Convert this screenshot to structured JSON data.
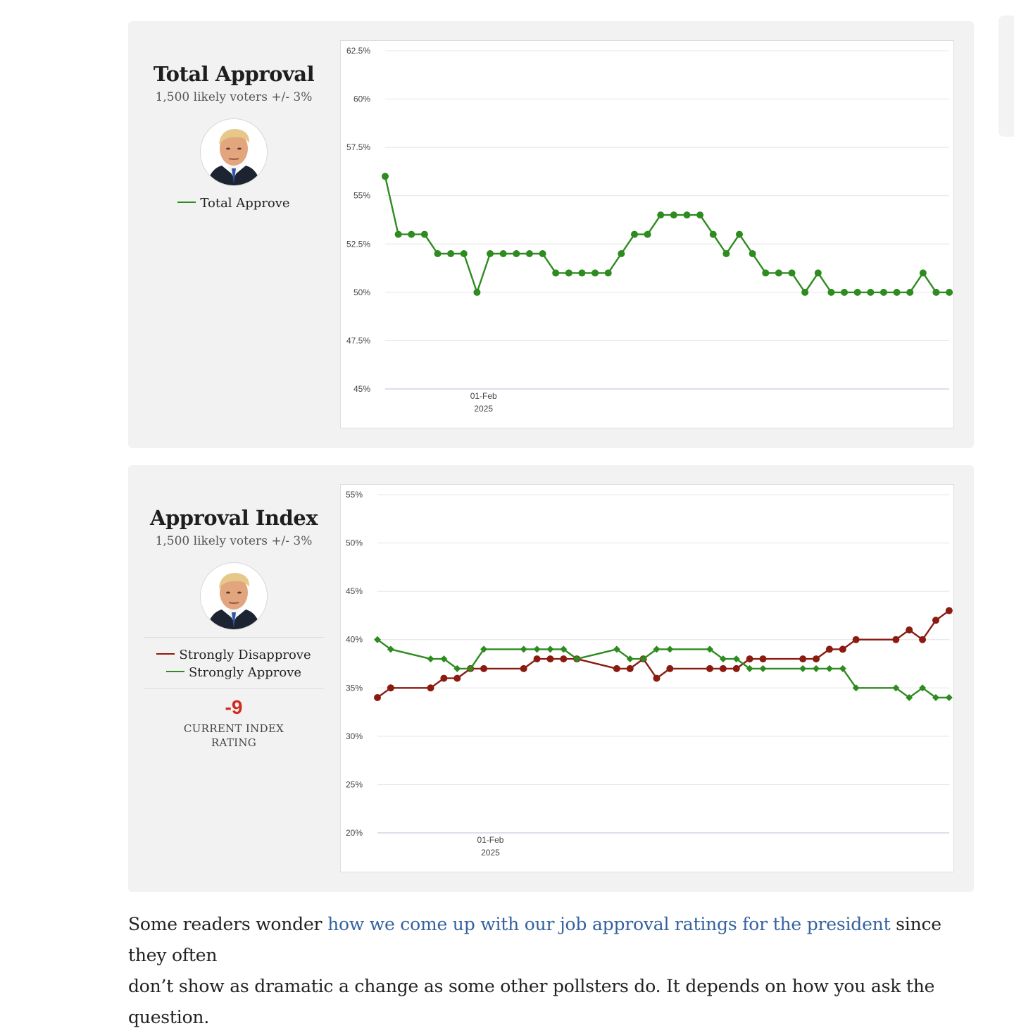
{
  "total_approval": {
    "title": "Total Approval",
    "subtitle": "1,500 likely voters +/- 3%",
    "legend": [
      {
        "label": "Total Approve",
        "color": "#2e8b1f"
      }
    ]
  },
  "approval_index": {
    "title": "Approval Index",
    "subtitle": "1,500 likely voters +/- 3%",
    "legend": [
      {
        "label": "Strongly Disapprove",
        "color": "#8b1a10"
      },
      {
        "label": "Strongly Approve",
        "color": "#2e8b1f"
      }
    ],
    "index_value": "-9",
    "index_label": "CURRENT INDEX RATING"
  },
  "article": {
    "text_before": "Some readers wonder ",
    "link": "how we come up with our job approval ratings for the president",
    "text_after": " since they often",
    "line2": "don’t show as dramatic a change as some other pollsters do. It depends on how you ask the question."
  },
  "colors": {
    "approve": "#2e8b1f",
    "disapprove": "#8b1a10",
    "link": "#35629e",
    "index": "#d2291f"
  },
  "chart_data": [
    {
      "type": "line",
      "title": "",
      "ylim": [
        45,
        62.5
      ],
      "yticks": [
        "62.5%",
        "60%",
        "57.5%",
        "55%",
        "52.5%",
        "50%",
        "47.5%",
        "45%"
      ],
      "xtick": {
        "label": "01-Feb",
        "sublabel": "2025",
        "index": 7.5
      },
      "series": [
        {
          "name": "Total Approve",
          "color": "#2e8b1f",
          "marker": "circle",
          "values": [
            56,
            53,
            53,
            53,
            52,
            52,
            52,
            50,
            52,
            52,
            52,
            52,
            52,
            51,
            51,
            51,
            51,
            51,
            52,
            53,
            53,
            54,
            54,
            54,
            54,
            53,
            52,
            53,
            52,
            51,
            51,
            51,
            50,
            51,
            50,
            50,
            50,
            50,
            50,
            50,
            50,
            51,
            50,
            50
          ]
        }
      ]
    },
    {
      "type": "line",
      "title": "",
      "ylim": [
        20,
        55
      ],
      "yticks": [
        "55%",
        "50%",
        "45%",
        "40%",
        "35%",
        "30%",
        "25%",
        "20%"
      ],
      "xtick": {
        "label": "01-Feb",
        "sublabel": "2025",
        "index": 8.5
      },
      "series": [
        {
          "name": "Strongly Disapprove",
          "color": "#8b1a10",
          "marker": "circle",
          "points": [
            [
              0,
              34
            ],
            [
              1,
              35
            ],
            [
              4,
              35
            ],
            [
              5,
              36
            ],
            [
              6,
              36
            ],
            [
              7,
              37
            ],
            [
              8,
              37
            ],
            [
              11,
              37
            ],
            [
              12,
              38
            ],
            [
              13,
              38
            ],
            [
              14,
              38
            ],
            [
              15,
              38
            ],
            [
              18,
              37
            ],
            [
              19,
              37
            ],
            [
              20,
              38
            ],
            [
              21,
              36
            ],
            [
              22,
              37
            ],
            [
              25,
              37
            ],
            [
              26,
              37
            ],
            [
              27,
              37
            ],
            [
              28,
              38
            ],
            [
              29,
              38
            ],
            [
              32,
              38
            ],
            [
              33,
              38
            ],
            [
              34,
              39
            ],
            [
              35,
              39
            ],
            [
              36,
              40
            ],
            [
              39,
              40
            ],
            [
              40,
              41
            ],
            [
              41,
              40
            ],
            [
              42,
              42
            ],
            [
              43,
              43
            ]
          ]
        },
        {
          "name": "Strongly Approve",
          "color": "#2e8b1f",
          "marker": "diamond",
          "points": [
            [
              0,
              40
            ],
            [
              1,
              39
            ],
            [
              4,
              38
            ],
            [
              5,
              38
            ],
            [
              6,
              37
            ],
            [
              7,
              37
            ],
            [
              8,
              39
            ],
            [
              11,
              39
            ],
            [
              12,
              39
            ],
            [
              13,
              39
            ],
            [
              14,
              39
            ],
            [
              15,
              38
            ],
            [
              18,
              39
            ],
            [
              19,
              38
            ],
            [
              20,
              38
            ],
            [
              21,
              39
            ],
            [
              22,
              39
            ],
            [
              25,
              39
            ],
            [
              26,
              38
            ],
            [
              27,
              38
            ],
            [
              28,
              37
            ],
            [
              29,
              37
            ],
            [
              32,
              37
            ],
            [
              33,
              37
            ],
            [
              34,
              37
            ],
            [
              35,
              37
            ],
            [
              36,
              35
            ],
            [
              39,
              35
            ],
            [
              40,
              34
            ],
            [
              41,
              35
            ],
            [
              42,
              34
            ],
            [
              43,
              34
            ]
          ]
        }
      ]
    }
  ]
}
